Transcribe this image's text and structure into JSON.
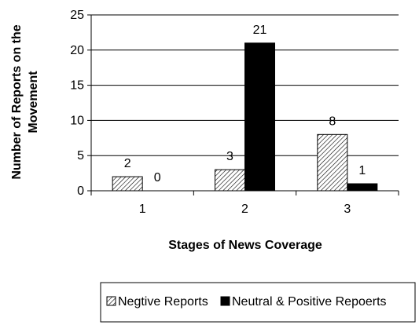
{
  "chart_data": {
    "type": "bar",
    "categories": [
      "1",
      "2",
      "3"
    ],
    "series": [
      {
        "name": "Negtive Reports",
        "values": [
          2,
          3,
          8
        ],
        "fill": "hatched"
      },
      {
        "name": "Neutral & Positive Repoerts",
        "values": [
          0,
          21,
          1
        ],
        "fill": "#000000"
      }
    ],
    "xlabel": "Stages of News Coverage",
    "ylabel": "Number of Reports on the Movement",
    "ylim": [
      0,
      25
    ],
    "yticks": [
      0,
      5,
      10,
      15,
      20,
      25
    ],
    "grid": true,
    "legend_position": "bottom"
  }
}
